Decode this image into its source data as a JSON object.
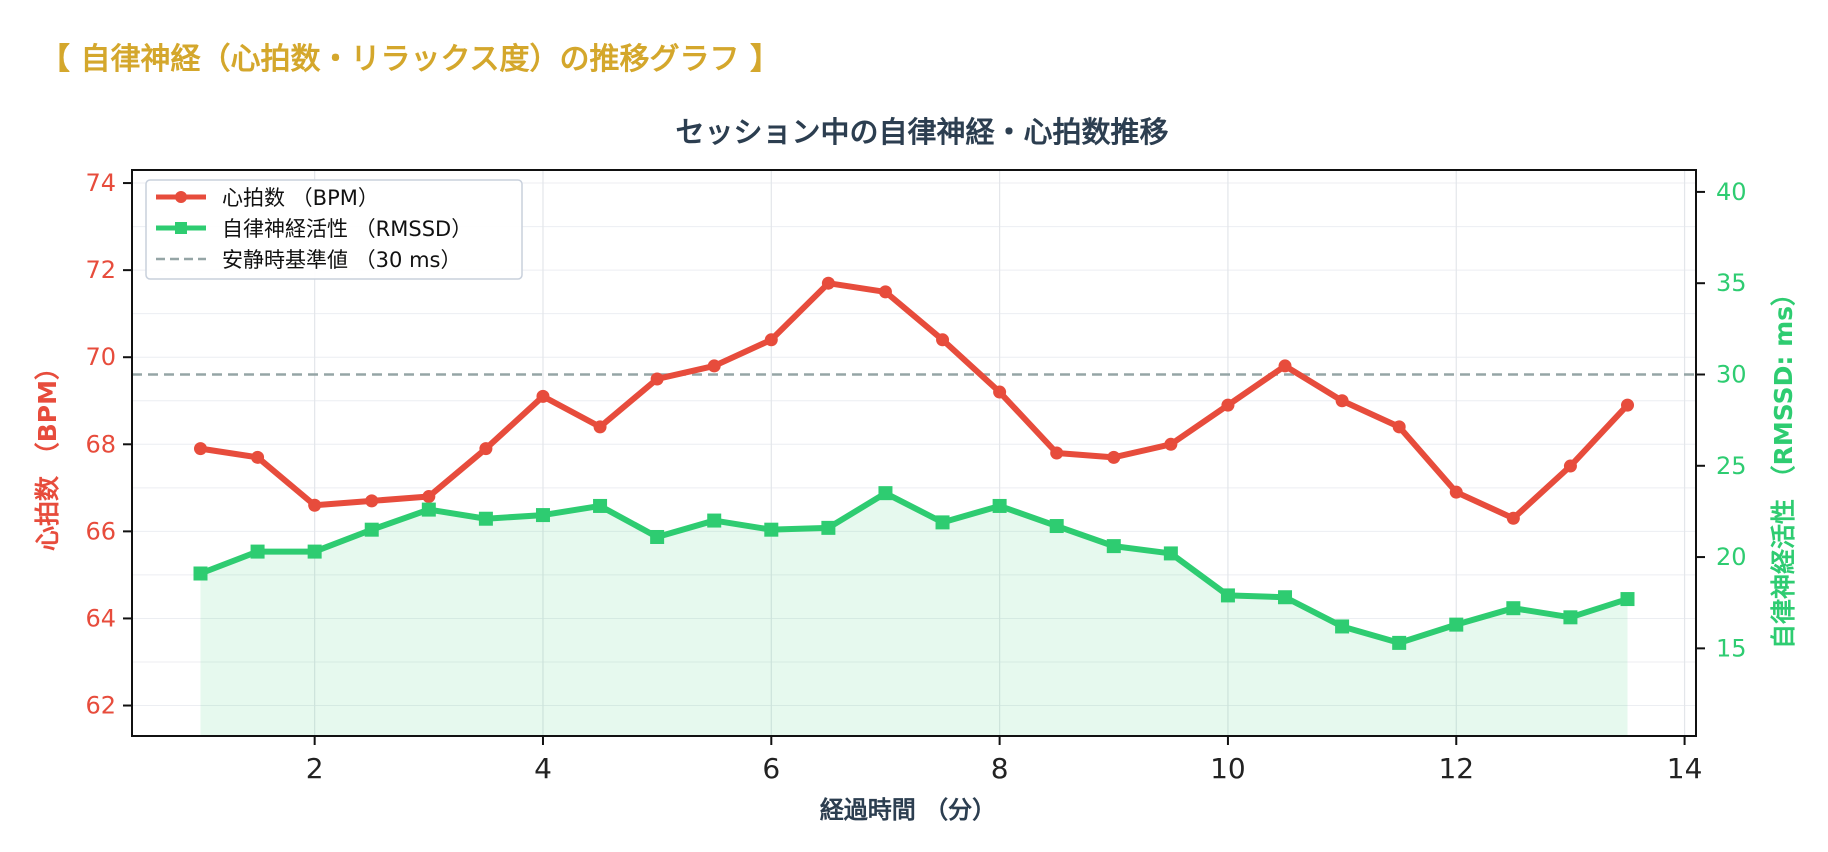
{
  "heading": "【 自律神経（心拍数・リラックス度）の推移グラフ 】",
  "chart_data": {
    "type": "line",
    "title": "セッション中の自律神経・心拍数推移",
    "xlabel": "経過時間 （分）",
    "ylabel_left": "心拍数 （BPM）",
    "ylabel_right": "自律神経活性 （RMSSD: ms）",
    "xlim": [
      0.4,
      14.1
    ],
    "ylim_left": [
      61.3,
      74.3
    ],
    "ylim_right": [
      10.2,
      41.2
    ],
    "x_ticks": [
      2,
      4,
      6,
      8,
      10,
      12,
      14
    ],
    "y_left_ticks": [
      62,
      64,
      66,
      68,
      70,
      72,
      74
    ],
    "y_right_ticks": [
      15,
      20,
      25,
      30,
      35,
      40
    ],
    "grid": true,
    "legend_position": "top-left",
    "x": [
      1,
      1.5,
      2,
      2.5,
      3,
      3.5,
      4,
      4.5,
      5,
      5.5,
      6,
      6.5,
      7,
      7.5,
      8,
      8.5,
      9,
      9.5,
      10,
      10.5,
      11,
      11.5,
      12,
      12.5,
      13,
      13.5
    ],
    "series": [
      {
        "name": "心拍数 （BPM）",
        "axis": "left",
        "color": "#e74c3c",
        "marker": "circle",
        "values": [
          67.9,
          67.7,
          66.6,
          66.7,
          66.8,
          67.9,
          69.1,
          68.4,
          69.5,
          69.8,
          70.4,
          71.7,
          71.5,
          70.4,
          69.2,
          67.8,
          67.7,
          68.0,
          68.9,
          69.8,
          69.0,
          68.4,
          66.9,
          66.3,
          67.5,
          68.9
        ]
      },
      {
        "name": "自律神経活性 （RMSSD）",
        "axis": "right",
        "color": "#2ecc71",
        "marker": "square",
        "fill": true,
        "values": [
          19.1,
          20.3,
          20.3,
          21.5,
          22.6,
          22.1,
          22.3,
          22.8,
          21.1,
          22.0,
          21.5,
          21.6,
          23.5,
          21.9,
          22.8,
          21.7,
          20.6,
          20.2,
          17.9,
          17.8,
          16.2,
          15.3,
          16.3,
          17.2,
          16.7,
          17.7
        ]
      }
    ],
    "baseline": {
      "name": "安静時基準値 （30 ms）",
      "axis": "right",
      "value": 30,
      "color": "#95a5a6"
    }
  }
}
